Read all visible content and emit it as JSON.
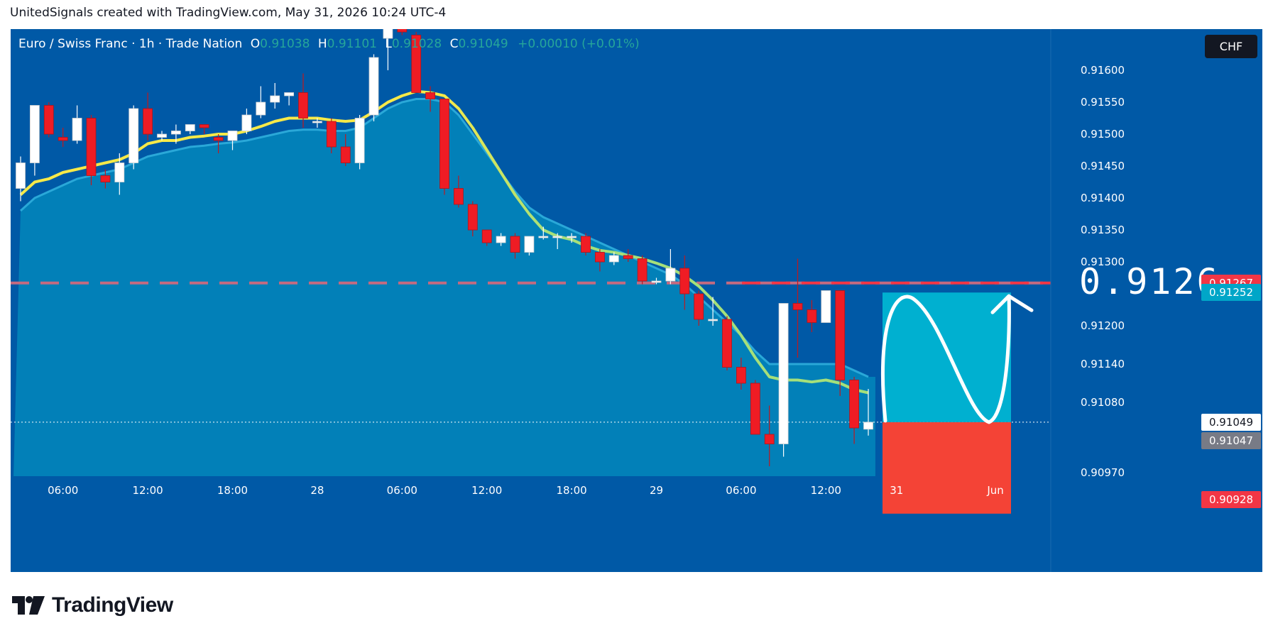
{
  "header": {
    "text": "UnitedSignals created with TradingView.com, May 31, 2026 10:24 UTC-4"
  },
  "legend": {
    "symbol": "Euro / Swiss Franc · 1h · Trade Nation",
    "open_key": "O",
    "open": "0.91038",
    "high_key": "H",
    "high": "0.91101",
    "low_key": "L",
    "low": "0.91028",
    "close_key": "C",
    "close": "0.91049",
    "change": "+0.00010 (+0.01%)"
  },
  "currency_button": "CHF",
  "annotation": {
    "target_label": "0.9126"
  },
  "price_tags": {
    "resistance": "0.91267",
    "target": "0.91252",
    "current": "0.91049",
    "bid": "0.91047",
    "stop": "0.90928"
  },
  "colors": {
    "background": "#0059a6",
    "band_fill": "#0283b8",
    "bull_candle": "#ffffff",
    "bear_candle": "#ef1c24",
    "ema_yellow": "#f7e948",
    "ema_green": "#a5e07a",
    "resistance_line": "#f23645",
    "target_zone": "#00b0d0",
    "stop_zone": "#f44336"
  },
  "footer": {
    "logo_text": "TradingView",
    "logo_icon": "tradingview-logo-icon"
  },
  "chart_data": {
    "type": "candlestick",
    "title": "Euro / Swiss Franc · 1h · Trade Nation",
    "y_axis": {
      "ticks": [
        "0.91600",
        "0.91550",
        "0.91500",
        "0.91450",
        "0.91400",
        "0.91350",
        "0.91300",
        "0.91200",
        "0.91140",
        "0.91080",
        "0.90970"
      ],
      "tick_values": [
        0.916,
        0.9155,
        0.915,
        0.9145,
        0.914,
        0.9135,
        0.913,
        0.912,
        0.9114,
        0.9108,
        0.9097
      ],
      "range": [
        0.9085,
        0.9167
      ],
      "position": "right"
    },
    "x_axis": {
      "ticks": [
        "06:00",
        "12:00",
        "18:00",
        "28",
        "06:00",
        "12:00",
        "18:00",
        "29",
        "06:00",
        "12:00",
        "31",
        "Jun"
      ],
      "tick_bar_index": [
        3,
        9,
        15,
        21,
        27,
        33,
        39,
        45,
        51,
        57,
        62.0,
        69.0
      ]
    },
    "candles": [
      {
        "o": 0.91415,
        "h": 0.91465,
        "l": 0.91395,
        "c": 0.91455
      },
      {
        "o": 0.91455,
        "h": 0.91545,
        "l": 0.91435,
        "c": 0.91545
      },
      {
        "o": 0.91545,
        "h": 0.9155,
        "l": 0.91495,
        "c": 0.915
      },
      {
        "o": 0.91495,
        "h": 0.9151,
        "l": 0.9148,
        "c": 0.9149
      },
      {
        "o": 0.9149,
        "h": 0.91545,
        "l": 0.91485,
        "c": 0.91525
      },
      {
        "o": 0.91525,
        "h": 0.9153,
        "l": 0.9142,
        "c": 0.91435
      },
      {
        "o": 0.91435,
        "h": 0.91445,
        "l": 0.91415,
        "c": 0.91425
      },
      {
        "o": 0.91425,
        "h": 0.9147,
        "l": 0.91405,
        "c": 0.91455
      },
      {
        "o": 0.91455,
        "h": 0.91545,
        "l": 0.91445,
        "c": 0.9154
      },
      {
        "o": 0.9154,
        "h": 0.91565,
        "l": 0.9149,
        "c": 0.915
      },
      {
        "o": 0.91495,
        "h": 0.91505,
        "l": 0.9149,
        "c": 0.915
      },
      {
        "o": 0.915,
        "h": 0.91515,
        "l": 0.91485,
        "c": 0.91505
      },
      {
        "o": 0.91505,
        "h": 0.91515,
        "l": 0.915,
        "c": 0.91515
      },
      {
        "o": 0.91515,
        "h": 0.91515,
        "l": 0.915,
        "c": 0.9151
      },
      {
        "o": 0.91495,
        "h": 0.915,
        "l": 0.9147,
        "c": 0.9149
      },
      {
        "o": 0.9149,
        "h": 0.91505,
        "l": 0.91475,
        "c": 0.91505
      },
      {
        "o": 0.91505,
        "h": 0.9154,
        "l": 0.915,
        "c": 0.9153
      },
      {
        "o": 0.9153,
        "h": 0.91575,
        "l": 0.91525,
        "c": 0.9155
      },
      {
        "o": 0.9155,
        "h": 0.9158,
        "l": 0.9154,
        "c": 0.9156
      },
      {
        "o": 0.9156,
        "h": 0.91565,
        "l": 0.91545,
        "c": 0.91565
      },
      {
        "o": 0.91565,
        "h": 0.91595,
        "l": 0.9151,
        "c": 0.91525
      },
      {
        "o": 0.9152,
        "h": 0.91525,
        "l": 0.9151,
        "c": 0.9152
      },
      {
        "o": 0.9152,
        "h": 0.91525,
        "l": 0.9147,
        "c": 0.9148
      },
      {
        "o": 0.9148,
        "h": 0.915,
        "l": 0.9145,
        "c": 0.91455
      },
      {
        "o": 0.91455,
        "h": 0.9153,
        "l": 0.91445,
        "c": 0.91525
      },
      {
        "o": 0.9153,
        "h": 0.91625,
        "l": 0.9152,
        "c": 0.9162
      },
      {
        "o": 0.9165,
        "h": 0.9167,
        "l": 0.916,
        "c": 0.91665
      },
      {
        "o": 0.91665,
        "h": 0.91675,
        "l": 0.91655,
        "c": 0.9166
      },
      {
        "o": 0.91655,
        "h": 0.9166,
        "l": 0.91565,
        "c": 0.91565
      },
      {
        "o": 0.91565,
        "h": 0.91575,
        "l": 0.91535,
        "c": 0.91555
      },
      {
        "o": 0.91555,
        "h": 0.91555,
        "l": 0.91405,
        "c": 0.91415
      },
      {
        "o": 0.91415,
        "h": 0.91435,
        "l": 0.91385,
        "c": 0.9139
      },
      {
        "o": 0.9139,
        "h": 0.91395,
        "l": 0.9134,
        "c": 0.9135
      },
      {
        "o": 0.9135,
        "h": 0.9135,
        "l": 0.91325,
        "c": 0.9133
      },
      {
        "o": 0.9133,
        "h": 0.91345,
        "l": 0.91325,
        "c": 0.9134
      },
      {
        "o": 0.9134,
        "h": 0.91345,
        "l": 0.91305,
        "c": 0.91315
      },
      {
        "o": 0.91315,
        "h": 0.9134,
        "l": 0.9131,
        "c": 0.9134
      },
      {
        "o": 0.9134,
        "h": 0.91355,
        "l": 0.91335,
        "c": 0.9134
      },
      {
        "o": 0.9134,
        "h": 0.91345,
        "l": 0.9132,
        "c": 0.9134
      },
      {
        "o": 0.9134,
        "h": 0.91345,
        "l": 0.9133,
        "c": 0.9134
      },
      {
        "o": 0.9134,
        "h": 0.91345,
        "l": 0.9131,
        "c": 0.91315
      },
      {
        "o": 0.91315,
        "h": 0.9132,
        "l": 0.91285,
        "c": 0.913
      },
      {
        "o": 0.913,
        "h": 0.91315,
        "l": 0.91295,
        "c": 0.9131
      },
      {
        "o": 0.9131,
        "h": 0.9132,
        "l": 0.913,
        "c": 0.91305
      },
      {
        "o": 0.91305,
        "h": 0.9131,
        "l": 0.91265,
        "c": 0.9127
      },
      {
        "o": 0.9127,
        "h": 0.91275,
        "l": 0.91265,
        "c": 0.9127
      },
      {
        "o": 0.9127,
        "h": 0.9132,
        "l": 0.91265,
        "c": 0.9129
      },
      {
        "o": 0.9129,
        "h": 0.9131,
        "l": 0.91225,
        "c": 0.9125
      },
      {
        "o": 0.9125,
        "h": 0.91255,
        "l": 0.912,
        "c": 0.9121
      },
      {
        "o": 0.9121,
        "h": 0.91245,
        "l": 0.912,
        "c": 0.9121
      },
      {
        "o": 0.9121,
        "h": 0.91215,
        "l": 0.9113,
        "c": 0.91135
      },
      {
        "o": 0.91135,
        "h": 0.9115,
        "l": 0.911,
        "c": 0.9111
      },
      {
        "o": 0.9111,
        "h": 0.91115,
        "l": 0.9103,
        "c": 0.9103
      },
      {
        "o": 0.9103,
        "h": 0.91075,
        "l": 0.9098,
        "c": 0.91015
      },
      {
        "o": 0.91015,
        "h": 0.91235,
        "l": 0.90995,
        "c": 0.91235
      },
      {
        "o": 0.91235,
        "h": 0.91305,
        "l": 0.9115,
        "c": 0.91225
      },
      {
        "o": 0.91225,
        "h": 0.9124,
        "l": 0.9119,
        "c": 0.91205
      },
      {
        "o": 0.91205,
        "h": 0.91255,
        "l": 0.91205,
        "c": 0.91255
      },
      {
        "o": 0.91255,
        "h": 0.91255,
        "l": 0.9109,
        "c": 0.91115
      },
      {
        "o": 0.91115,
        "h": 0.9112,
        "l": 0.91015,
        "c": 0.9104
      },
      {
        "o": 0.91038,
        "h": 0.91101,
        "l": 0.91028,
        "c": 0.91049
      }
    ],
    "ema_series": [
      0.91405,
      0.91425,
      0.9143,
      0.9144,
      0.91445,
      0.9145,
      0.91455,
      0.9146,
      0.9147,
      0.91485,
      0.9149,
      0.9149,
      0.91495,
      0.91497,
      0.915,
      0.915,
      0.91505,
      0.91512,
      0.9152,
      0.91525,
      0.91525,
      0.91525,
      0.91522,
      0.9152,
      0.91522,
      0.91535,
      0.9155,
      0.9156,
      0.91567,
      0.91565,
      0.9156,
      0.9154,
      0.9151,
      0.91475,
      0.9144,
      0.91405,
      0.91375,
      0.9135,
      0.9134,
      0.91335,
      0.91325,
      0.91318,
      0.91315,
      0.9131,
      0.91305,
      0.91298,
      0.9129,
      0.91278,
      0.91262,
      0.9124,
      0.91215,
      0.91185,
      0.9115,
      0.9112,
      0.91115,
      0.91115,
      0.91112,
      0.91115,
      0.9111,
      0.911,
      0.91095
    ],
    "band_series": [
      0.9138,
      0.914,
      0.9141,
      0.9142,
      0.9143,
      0.91435,
      0.9144,
      0.91445,
      0.91455,
      0.91465,
      0.9147,
      0.91475,
      0.9148,
      0.91482,
      0.91485,
      0.91487,
      0.9149,
      0.91495,
      0.915,
      0.91505,
      0.91507,
      0.91507,
      0.91505,
      0.91505,
      0.9151,
      0.91525,
      0.9154,
      0.9155,
      0.91555,
      0.91555,
      0.9155,
      0.9153,
      0.915,
      0.9147,
      0.9144,
      0.9141,
      0.91385,
      0.9137,
      0.9136,
      0.9135,
      0.9134,
      0.9133,
      0.9132,
      0.9131,
      0.913,
      0.9129,
      0.9128,
      0.91265,
      0.91245,
      0.91225,
      0.91205,
      0.91185,
      0.9116,
      0.9114,
      0.9114,
      0.9114,
      0.9114,
      0.9114,
      0.9114,
      0.9113,
      0.9112
    ],
    "levels": {
      "resistance": 0.91267,
      "current": 0.91049,
      "target_top": 0.91252,
      "entry": 0.91049,
      "stop": 0.90928
    },
    "annotation_wave": "hand-drawn arrow curving down then up to target",
    "grid": false,
    "legend_position": "top-left"
  }
}
